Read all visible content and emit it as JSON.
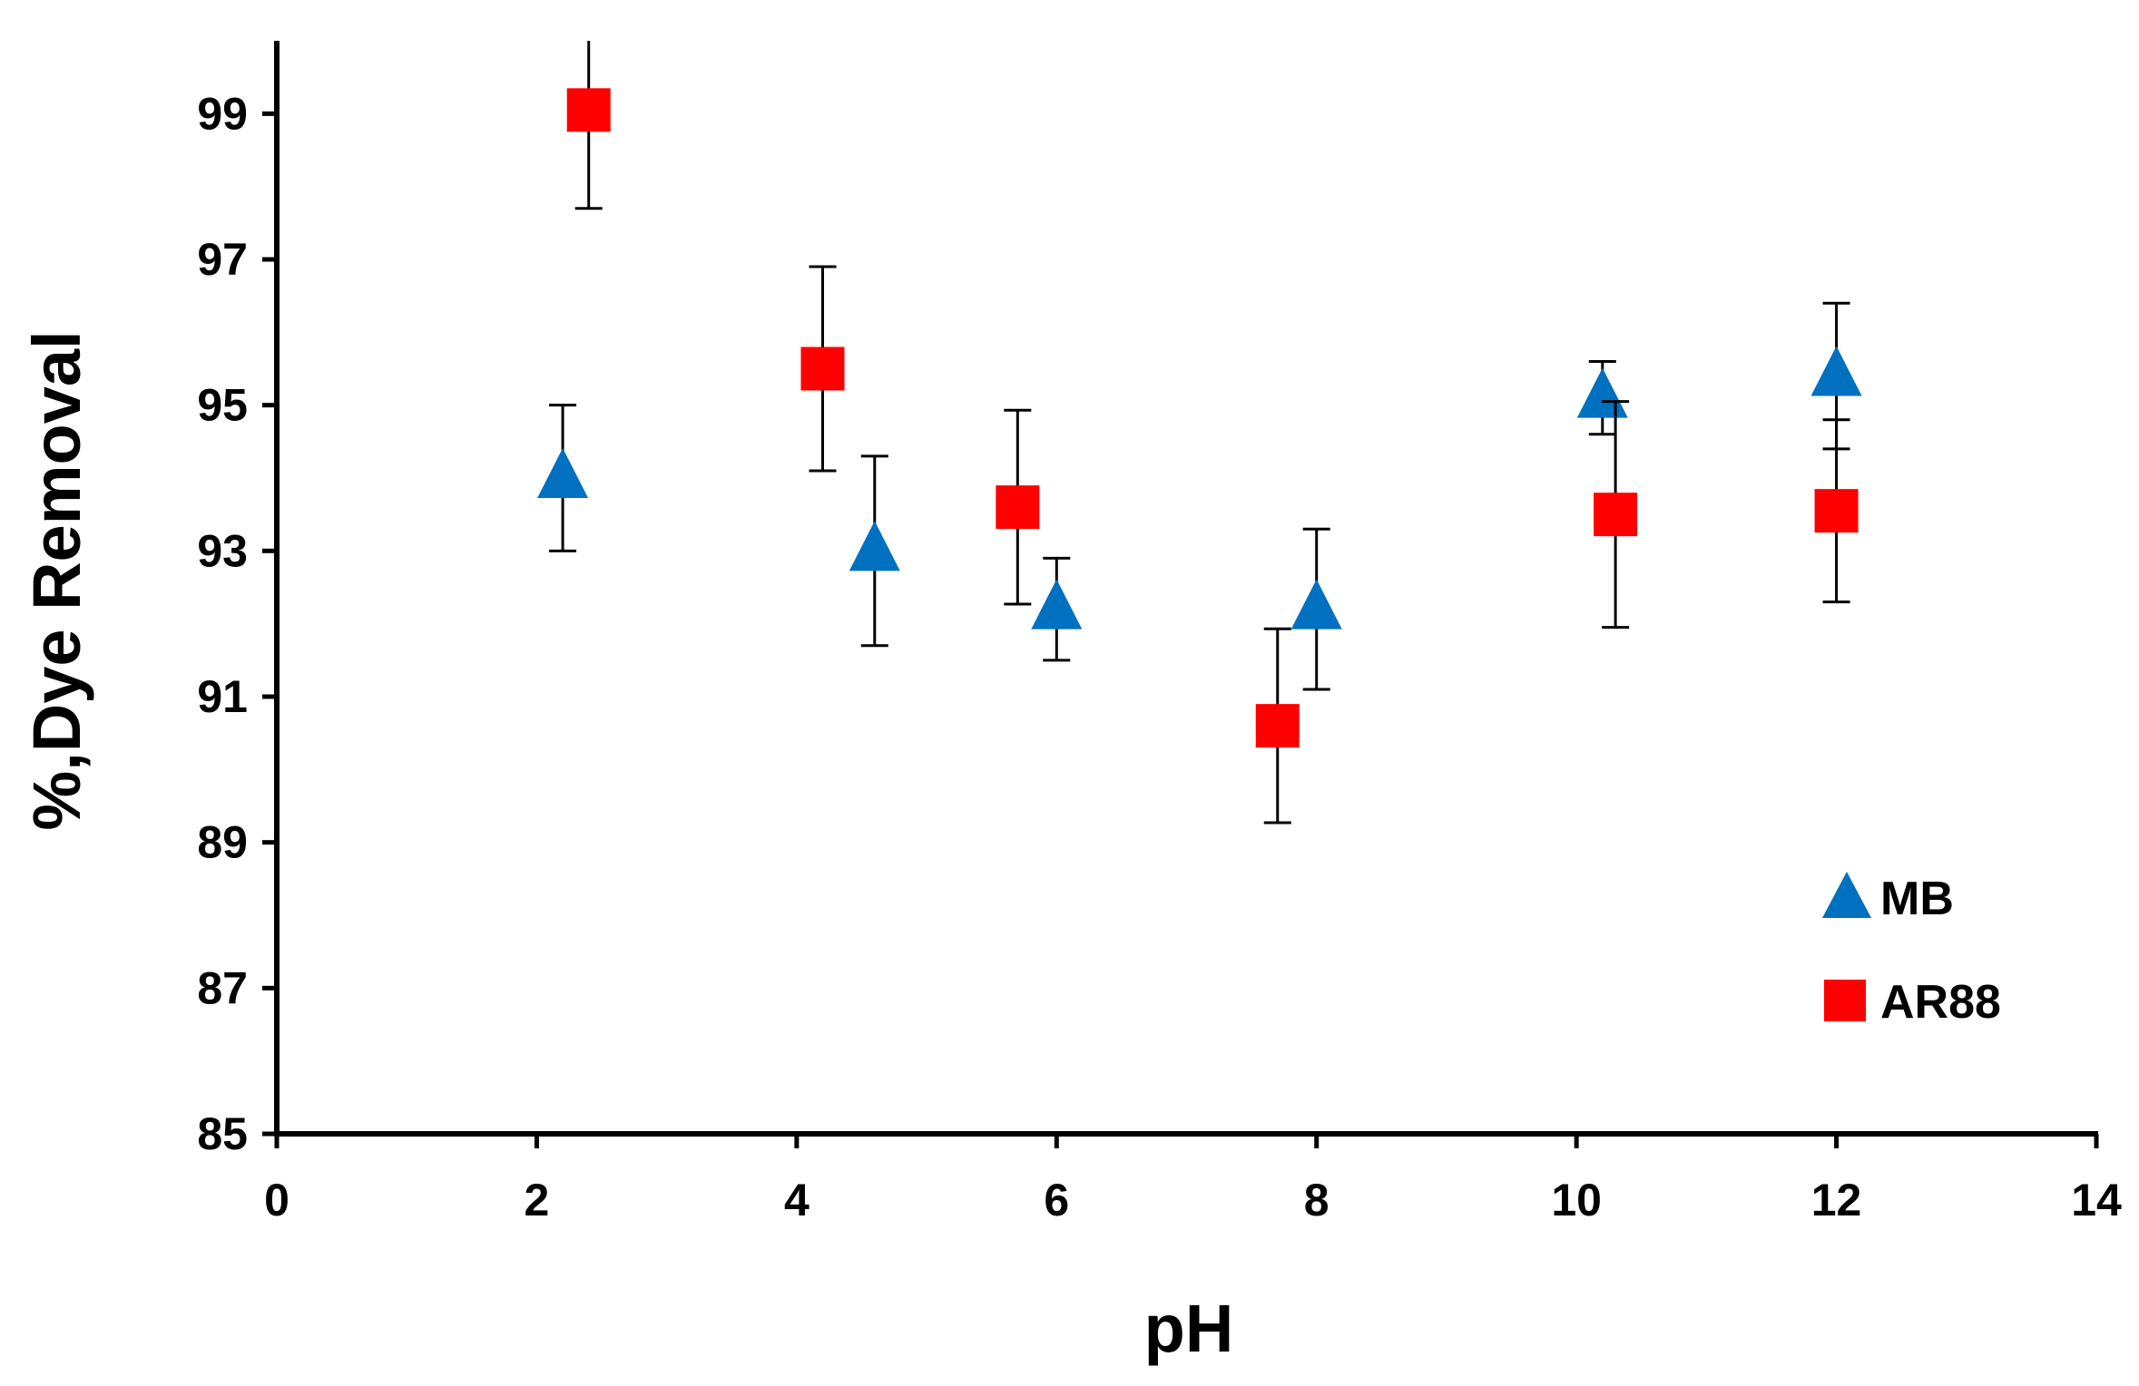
{
  "chart_data": {
    "type": "scatter",
    "title": "",
    "xlabel": "pH",
    "ylabel": "%,Dye Removal",
    "xlim": [
      0,
      14
    ],
    "ylim": [
      85,
      100
    ],
    "x_ticks": [
      0,
      2,
      4,
      6,
      8,
      10,
      12,
      14
    ],
    "y_ticks": [
      85,
      87,
      89,
      91,
      93,
      95,
      97,
      99
    ],
    "grid": false,
    "legend_position": "bottom-right",
    "series": [
      {
        "name": "MB",
        "marker": "triangle",
        "color": "#0070C0",
        "points": [
          {
            "x": 2.2,
            "y": 94.0,
            "err": 1.0
          },
          {
            "x": 4.6,
            "y": 93.0,
            "err": 1.3
          },
          {
            "x": 6.0,
            "y": 92.2,
            "err": 0.7
          },
          {
            "x": 8.0,
            "y": 92.2,
            "err": 1.1
          },
          {
            "x": 10.2,
            "y": 95.1,
            "err": 0.5
          },
          {
            "x": 12.0,
            "y": 95.4,
            "err": 1.0
          }
        ]
      },
      {
        "name": "AR88",
        "marker": "square",
        "color": "#FF0000",
        "points": [
          {
            "x": 2.4,
            "y": 99.05,
            "err": 1.35
          },
          {
            "x": 4.2,
            "y": 95.5,
            "err": 1.4
          },
          {
            "x": 5.7,
            "y": 93.6,
            "err": 1.33
          },
          {
            "x": 7.7,
            "y": 90.6,
            "err": 1.33
          },
          {
            "x": 10.3,
            "y": 93.5,
            "err": 1.55
          },
          {
            "x": 12.0,
            "y": 93.55,
            "err": 1.25
          }
        ]
      }
    ]
  }
}
